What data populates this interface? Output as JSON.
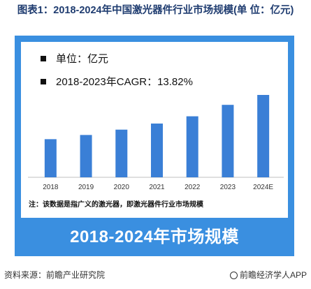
{
  "figure": {
    "title": "图表1：2018-2024年中国激光器件行业市场规模(单 位：亿元)"
  },
  "legend": {
    "unit": "单位：亿元",
    "cagr": "2018-2023年CAGR：13.82%"
  },
  "note": "注：该数据是指广义的激光器，即激光器件行业市场规模",
  "banner_title": "2018-2024年市场规模",
  "source": "资料来源：前瞻产业研究院",
  "brand": "前瞻经济学人APP",
  "colors": {
    "frame": "#3a8fe0",
    "bar": "#3a7fd6",
    "axis": "#bfbfbf"
  },
  "chart_data": {
    "type": "bar",
    "categories": [
      "2018",
      "2019",
      "2020",
      "2021",
      "2022",
      "2023",
      "2024E"
    ],
    "values": [
      100,
      111,
      125,
      141,
      160,
      190,
      216
    ],
    "title": "",
    "xlabel": "",
    "ylabel": "",
    "ylim": [
      0,
      216
    ],
    "grid": false,
    "legend": "none",
    "data_labels": false
  }
}
